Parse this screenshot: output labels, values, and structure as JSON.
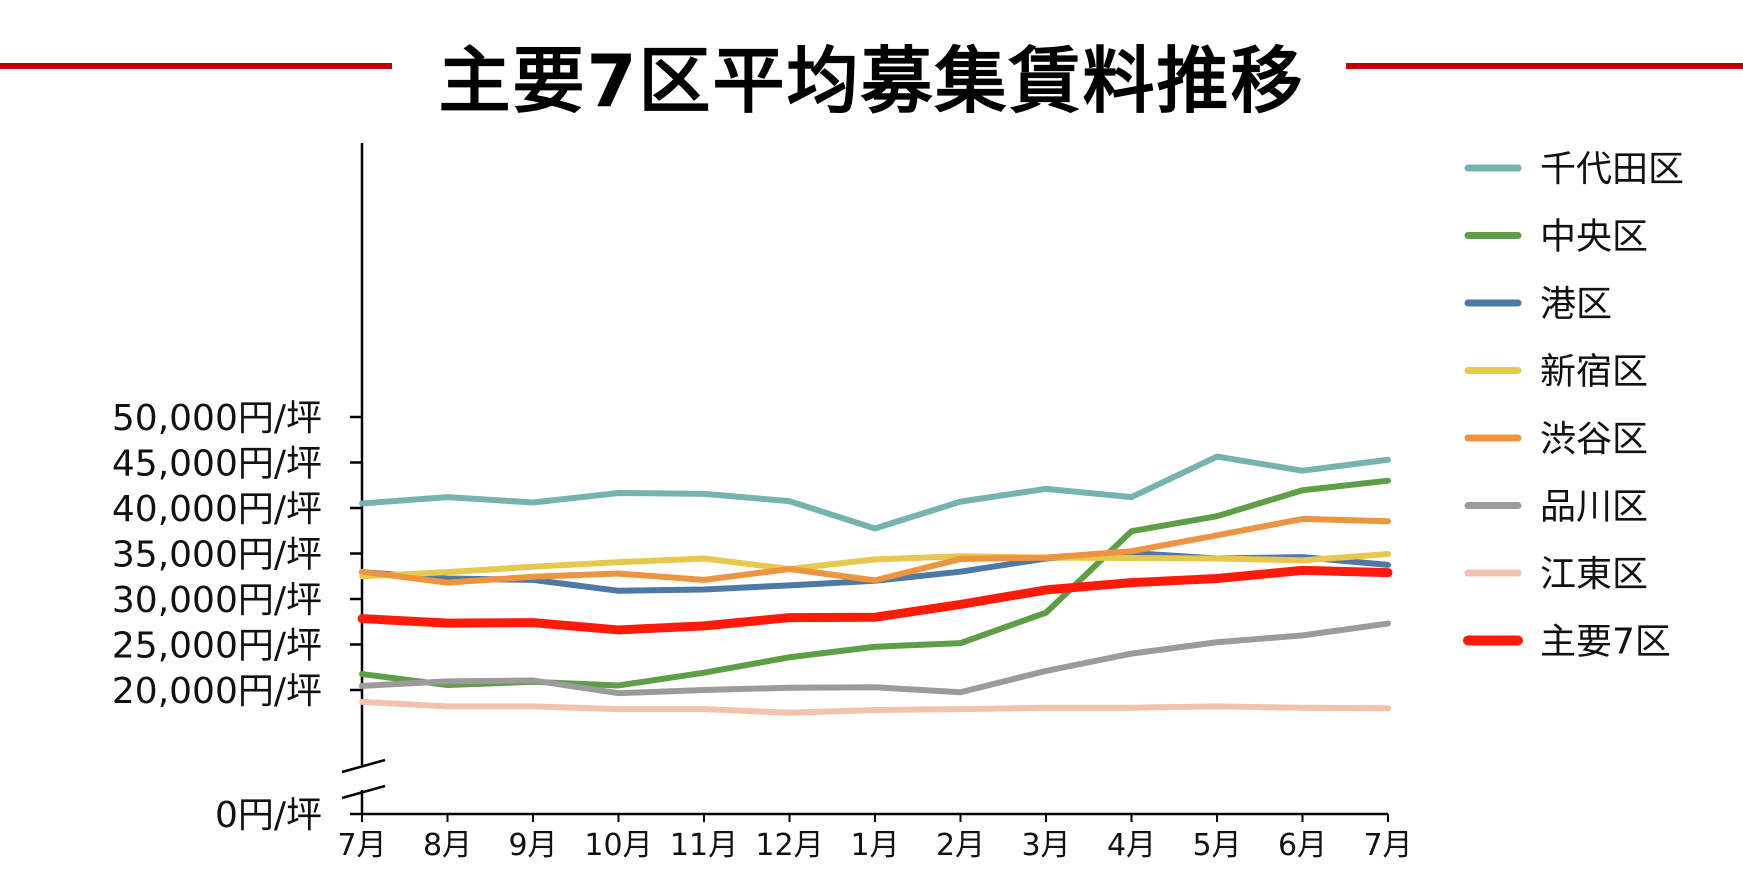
{
  "title": "主要7区平均募集賃料推移",
  "chart_data": {
    "type": "line",
    "title": "主要7区平均募集賃料推移",
    "xlabel": "",
    "ylabel": "",
    "y_axis_break": true,
    "ylim": [
      0,
      50000
    ],
    "legend_position": "right",
    "x": [
      "7月",
      "8月",
      "9月",
      "10月",
      "11月",
      "12月",
      "1月",
      "2月",
      "3月",
      "4月",
      "5月",
      "6月",
      "7月"
    ],
    "y_ticks": [
      {
        "value": 0,
        "label": "0円/坪"
      },
      {
        "value": 20000,
        "label": "20,000円/坪"
      },
      {
        "value": 25000,
        "label": "25,000円/坪"
      },
      {
        "value": 30000,
        "label": "30,000円/坪"
      },
      {
        "value": 35000,
        "label": "35,000円/坪"
      },
      {
        "value": 40000,
        "label": "40,000円/坪"
      },
      {
        "value": 45000,
        "label": "45,000円/坪"
      },
      {
        "value": 50000,
        "label": "50,000円/坪"
      }
    ],
    "series": [
      {
        "name": "千代田区",
        "color": "#76b3b0",
        "values": [
          40500,
          41200,
          40600,
          41650,
          41550,
          40750,
          37750,
          40700,
          42100,
          41200,
          45650,
          44100,
          45300
        ]
      },
      {
        "name": "中央区",
        "color": "#5d9e47",
        "values": [
          21750,
          20550,
          20900,
          20500,
          21900,
          23600,
          24750,
          25150,
          28500,
          37450,
          39100,
          41950,
          43000
        ]
      },
      {
        "name": "港区",
        "color": "#4e78a6",
        "values": [
          32950,
          32250,
          32100,
          30900,
          31050,
          31500,
          32000,
          33000,
          34450,
          35050,
          34450,
          34600,
          33750
        ]
      },
      {
        "name": "新宿区",
        "color": "#e6c84f",
        "values": [
          32500,
          32950,
          33550,
          34050,
          34450,
          33300,
          34350,
          34700,
          34550,
          34500,
          34450,
          34250,
          34950
        ]
      },
      {
        "name": "渋谷区",
        "color": "#ed9440",
        "values": [
          33000,
          31800,
          32450,
          32800,
          32100,
          33300,
          32050,
          34400,
          34550,
          35250,
          37000,
          38800,
          38550
        ]
      },
      {
        "name": "品川区",
        "color": "#9b9b9b",
        "values": [
          20450,
          20950,
          21050,
          19650,
          20000,
          20250,
          20300,
          19750,
          22100,
          24000,
          25250,
          26000,
          27300
        ]
      },
      {
        "name": "江東区",
        "color": "#f1c3ab",
        "values": [
          18700,
          18200,
          18200,
          17900,
          17900,
          17500,
          17800,
          17900,
          18050,
          18050,
          18200,
          18050,
          18000
        ]
      },
      {
        "name": "主要7区",
        "color": "#ff1a0a",
        "values": [
          27850,
          27350,
          27400,
          26600,
          27050,
          27950,
          28000,
          29400,
          31000,
          31800,
          32250,
          33150,
          32900
        ]
      }
    ]
  }
}
